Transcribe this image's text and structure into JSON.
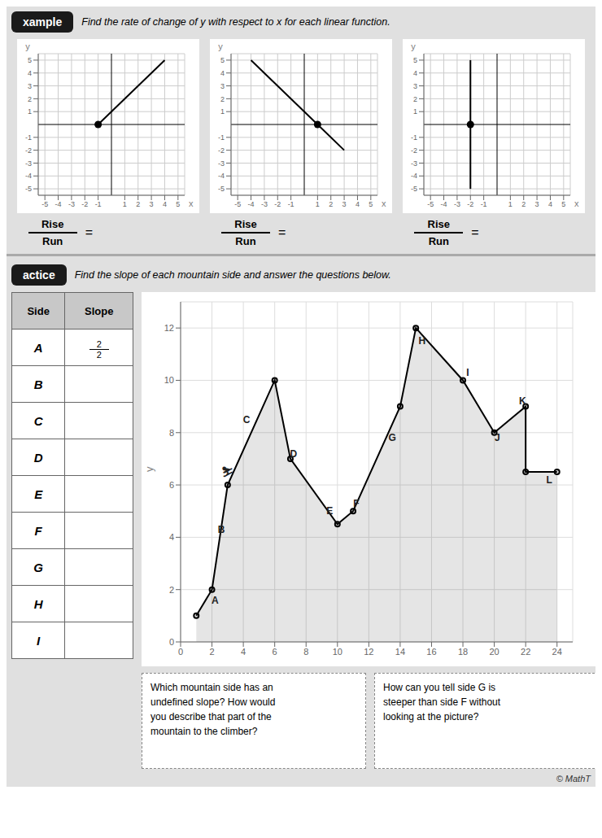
{
  "chart_data": [
    {
      "type": "line",
      "xlabel": "x",
      "ylabel": "y",
      "xlim": [
        -5.5,
        5.5
      ],
      "ylim": [
        -5.5,
        5.5
      ],
      "xticks": [
        -5,
        -4,
        -3,
        -2,
        -1,
        1,
        2,
        3,
        4,
        5
      ],
      "yticks": [
        -5,
        -4,
        -3,
        -2,
        -1,
        1,
        2,
        3,
        4,
        5
      ],
      "grid": true,
      "series": [
        {
          "type": "line",
          "color": "#000000",
          "x": [
            -1,
            4
          ],
          "values": [
            0,
            5
          ]
        },
        {
          "type": "scatter",
          "color": "#000000",
          "x": [
            -1
          ],
          "values": [
            0
          ]
        }
      ],
      "annotations": [
        "Rise",
        "Run",
        "="
      ]
    },
    {
      "type": "line",
      "xlabel": "x",
      "ylabel": "y",
      "xlim": [
        -5.5,
        5.5
      ],
      "ylim": [
        -5.5,
        5.5
      ],
      "xticks": [
        -5,
        -4,
        -3,
        -2,
        -1,
        1,
        2,
        3,
        4,
        5
      ],
      "yticks": [
        -5,
        -4,
        -3,
        -2,
        -1,
        1,
        2,
        3,
        4,
        5
      ],
      "grid": true,
      "series": [
        {
          "type": "line",
          "color": "#000000",
          "x": [
            -4,
            1,
            3
          ],
          "values": [
            5,
            0,
            -2
          ]
        },
        {
          "type": "scatter",
          "color": "#000000",
          "x": [
            1
          ],
          "values": [
            0
          ]
        }
      ],
      "annotations": [
        "Rise",
        "Run",
        "="
      ]
    },
    {
      "type": "line",
      "xlabel": "x",
      "ylabel": "y",
      "xlim": [
        -5.5,
        5.5
      ],
      "ylim": [
        -5.5,
        5.5
      ],
      "xticks": [
        -5,
        -4,
        -3,
        -2,
        -1,
        1,
        2,
        3,
        4,
        5
      ],
      "yticks": [
        -5,
        -4,
        -3,
        -2,
        -1,
        1,
        2,
        3,
        4,
        5
      ],
      "grid": true,
      "series": [
        {
          "type": "line",
          "color": "#000000",
          "x": [
            -2,
            -2
          ],
          "values": [
            5,
            -5
          ]
        },
        {
          "type": "scatter",
          "color": "#000000",
          "x": [
            -2
          ],
          "values": [
            0
          ]
        }
      ],
      "annotations": [
        "Rise",
        "Run",
        "="
      ]
    },
    {
      "type": "table",
      "columns": [
        "Side",
        "Slope"
      ],
      "rows": [
        [
          "A",
          {
            "numerator": 2,
            "denominator": 2
          }
        ],
        [
          "B",
          null
        ],
        [
          "C",
          null
        ],
        [
          "D",
          null
        ],
        [
          "E",
          null
        ],
        [
          "F",
          null
        ],
        [
          "G",
          null
        ],
        [
          "H",
          null
        ],
        [
          "I",
          null
        ]
      ]
    },
    {
      "type": "area",
      "ylabel": "y",
      "xlim": [
        0,
        25
      ],
      "ylim": [
        0,
        13
      ],
      "xticks": [
        0,
        2,
        4,
        6,
        8,
        10,
        12,
        14,
        16,
        18,
        20,
        22,
        24
      ],
      "yticks": [
        0,
        2,
        4,
        6,
        8,
        10,
        12
      ],
      "grid": true,
      "series": [
        {
          "color": "#000000",
          "marker": "circle",
          "x": [
            1,
            2,
            3,
            6,
            7,
            10,
            11,
            14,
            15,
            18,
            20,
            22,
            22,
            24
          ],
          "values": [
            1,
            2,
            6,
            10,
            7,
            4.5,
            5,
            9,
            12,
            10,
            8,
            9,
            6.5,
            6.5
          ]
        }
      ],
      "annotations": [
        {
          "x": 2.2,
          "y": 1.6,
          "text": "A"
        },
        {
          "x": 2.6,
          "y": 4.3,
          "text": "B"
        },
        {
          "x": 4.2,
          "y": 8.5,
          "text": "C"
        },
        {
          "x": 7.2,
          "y": 7.2,
          "text": "D"
        },
        {
          "x": 9.5,
          "y": 5.0,
          "text": "E"
        },
        {
          "x": 11.2,
          "y": 5.3,
          "text": "F"
        },
        {
          "x": 13.5,
          "y": 7.8,
          "text": "G"
        },
        {
          "x": 15.4,
          "y": 11.5,
          "text": "H"
        },
        {
          "x": 18.3,
          "y": 10.3,
          "text": "I"
        },
        {
          "x": 20.2,
          "y": 7.8,
          "text": "J"
        },
        {
          "x": 21.8,
          "y": 9.2,
          "text": "K"
        },
        {
          "x": 23.5,
          "y": 6.2,
          "text": "L"
        },
        {
          "x": 3.0,
          "y": 6.5,
          "text": "⛷"
        }
      ]
    }
  ],
  "sections": [
    {
      "label": "xample",
      "title": "Find the rate of change of y with respect to x for each linear function."
    },
    {
      "label": "actice",
      "title": "Find the slope of each mountain side and answer the questions below."
    }
  ],
  "annotations": [
    "Which mountain side has an\nundefined slope? How would\nyou describe that part of the\nmountain to the climber?",
    "How can you tell side G is\nsteeper than side F without\nlooking at the picture?",
    "© MathT"
  ]
}
